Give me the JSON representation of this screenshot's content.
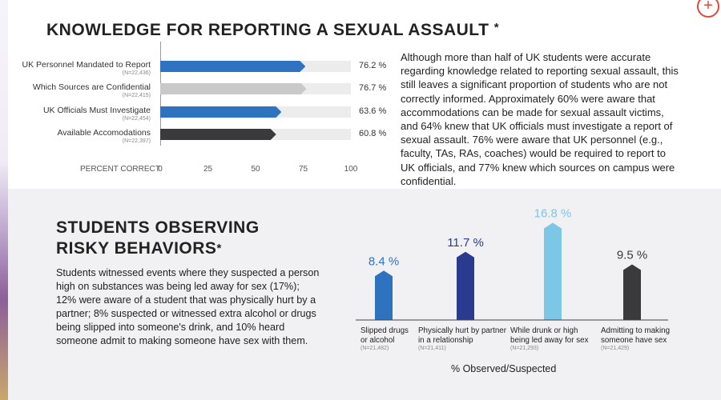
{
  "colors": {
    "accent_blue": "#2f73c0",
    "light_gray": "#c9c9c9",
    "dark_gray": "#3a3a3c",
    "navy": "#2a3a8f",
    "light_blue": "#7cc6e6",
    "corner_red": "#e04a3c"
  },
  "corner_icon": "plus-circle-icon",
  "section1": {
    "title": "KNOWLEDGE FOR REPORTING A SEXUAL ASSAULT",
    "star": "*",
    "paragraph": "Although more than half of UK students were accurate regarding knowledge related to reporting sexual assault, this still leaves a significant proportion of students who are not correctly informed. Approximately 60% were aware that accommodations can be made for sexual assault victims, and 64% knew that UK officials must investigate a report of sexual assault. 76% were aware that UK personnel (e.g., faculty, TAs, RAs, coaches) would be required to report to UK officials, and 77% knew which sources on campus were confidential."
  },
  "section2": {
    "title_line1": "STUDENTS OBSERVING",
    "title_line2": "RISKY BEHAVIORS",
    "star": "*",
    "paragraph": "Students witnessed events where they suspected a person high on substances was being led away for sex (17%); 12% were aware of a student that was physically hurt by a partner; 8% suspected or witnessed extra alcohol or drugs being slipped into someone's drink, and 10% heard someone admit to making someone have sex with them."
  },
  "chart_data": [
    {
      "type": "bar",
      "orientation": "horizontal",
      "categories": [
        "UK Personnel Mandated to Report",
        "Which Sources are Confidential",
        "UK Officials Must Investigate",
        "Available Accomodations"
      ],
      "n_labels": [
        "(N=22,436)",
        "(N=22,415)",
        "(N=22,454)",
        "(N=22,397)"
      ],
      "values": [
        76.2,
        76.7,
        63.6,
        60.8
      ],
      "value_labels": [
        "76.2 %",
        "76.7 %",
        "63.6 %",
        "60.8 %"
      ],
      "bar_colors": [
        "#2f73c0",
        "#c9c9c9",
        "#2f73c0",
        "#3a3a3c"
      ],
      "xlabel": "PERCENT CORRECT",
      "xticks": [
        "0",
        "25",
        "50",
        "75",
        "100"
      ],
      "xlim": [
        0,
        100
      ],
      "grid": false
    },
    {
      "type": "bar",
      "orientation": "vertical",
      "categories": [
        "Slipped drugs or alcohol",
        "Physically hurt by partner in a relationship",
        "While drunk or high being led away for sex",
        "Admitting to making someone have sex"
      ],
      "category_lines": [
        [
          "Slipped drugs",
          "or alcohol"
        ],
        [
          "Physically hurt by partner",
          "in a relationship"
        ],
        [
          "While drunk or high",
          "being led away for sex"
        ],
        [
          "Admitting to making",
          "someone have sex"
        ]
      ],
      "n_labels": [
        "(N=21,482)",
        "(N=21,411)",
        "(N=21,293)",
        "(N=21,429)"
      ],
      "values": [
        8.4,
        11.7,
        16.8,
        9.5
      ],
      "value_labels": [
        "8.4 %",
        "11.7 %",
        "16.8 %",
        "9.5 %"
      ],
      "bar_colors": [
        "#2f73c0",
        "#2a3a8f",
        "#7cc6e6",
        "#3a3a3c"
      ],
      "value_label_colors": [
        "#2f73c0",
        "#2a3a8f",
        "#7cc6e6",
        "#3a3a3c"
      ],
      "xlabel": "% Observed/Suspected",
      "ylim": [
        0,
        18
      ],
      "grid": false
    }
  ]
}
